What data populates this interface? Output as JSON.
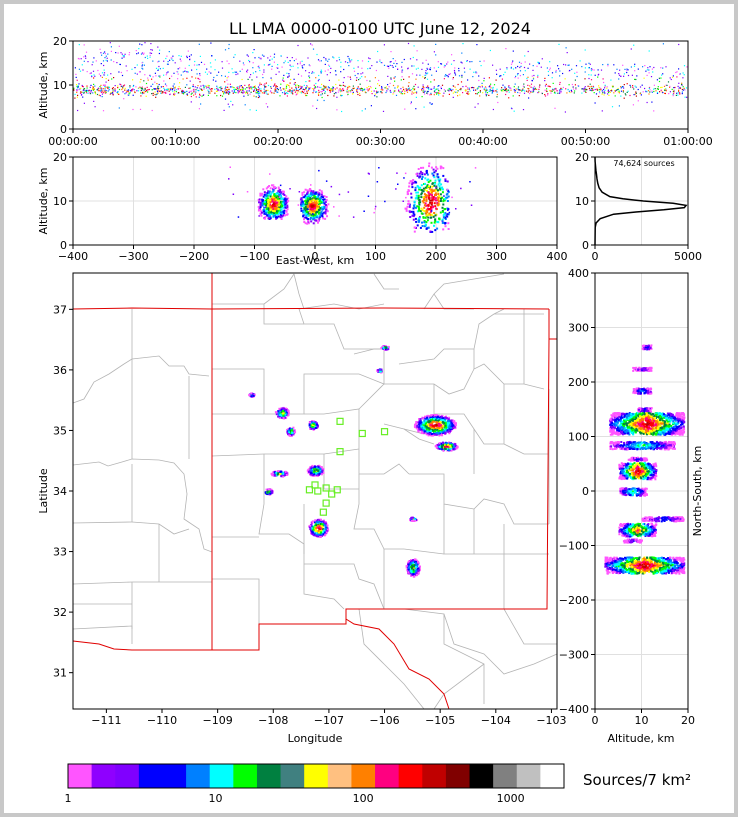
{
  "chart_data": [
    {
      "id": "time_height",
      "type": "scatter",
      "title": "LL LMA 0000-0100 UTC June 12, 2024",
      "ylabel": "Altitude, km",
      "ylim": [
        0,
        20
      ],
      "yticks": [
        0,
        10,
        20
      ],
      "xticks": [
        "00:00:00",
        "00:10:00",
        "00:20:00",
        "00:30:00",
        "00:40:00",
        "00:50:00",
        "01:00:00"
      ],
      "xlim_minutes": [
        0,
        60
      ],
      "dense_core_altitude_km": [
        7,
        12
      ],
      "source_altitude_extent_km": [
        2,
        20
      ]
    },
    {
      "id": "ew_altitude",
      "type": "heatmap",
      "xlabel": "East-West, km",
      "ylabel": "Altitude, km",
      "xlim": [
        -400,
        400
      ],
      "xticks": [
        -400,
        -300,
        -200,
        -100,
        0,
        100,
        200,
        300,
        400
      ],
      "ylim": [
        0,
        20
      ],
      "yticks": [
        0,
        10,
        20
      ],
      "clusters": [
        {
          "x": [
            -95,
            -45
          ],
          "alt": [
            6,
            14
          ],
          "peak_x": -70,
          "peak_alt": 9.5
        },
        {
          "x": [
            -25,
            25
          ],
          "alt": [
            5,
            13
          ],
          "peak_x": -5,
          "peak_alt": 9
        },
        {
          "x": [
            140,
            220
          ],
          "alt": [
            3,
            20
          ],
          "peak_x": 190,
          "peak_alt": 10
        }
      ]
    },
    {
      "id": "altitude_histogram",
      "type": "line",
      "annotation": "74,624 sources",
      "xlim": [
        0,
        5000
      ],
      "xticks": [
        0,
        5000
      ],
      "ylim": [
        0,
        20
      ],
      "yticks": [
        0,
        10,
        20
      ],
      "profile": [
        {
          "alt": 0,
          "count": 0
        },
        {
          "alt": 4,
          "count": 10
        },
        {
          "alt": 5,
          "count": 60
        },
        {
          "alt": 6,
          "count": 280
        },
        {
          "alt": 7,
          "count": 1000
        },
        {
          "alt": 7.5,
          "count": 2200
        },
        {
          "alt": 8,
          "count": 3700
        },
        {
          "alt": 8.5,
          "count": 4800
        },
        {
          "alt": 9,
          "count": 4900
        },
        {
          "alt": 9.5,
          "count": 4200
        },
        {
          "alt": 10,
          "count": 2600
        },
        {
          "alt": 10.5,
          "count": 1500
        },
        {
          "alt": 11,
          "count": 800
        },
        {
          "alt": 12,
          "count": 380
        },
        {
          "alt": 13,
          "count": 220
        },
        {
          "alt": 14,
          "count": 150
        },
        {
          "alt": 15,
          "count": 110
        },
        {
          "alt": 16,
          "count": 80
        },
        {
          "alt": 17,
          "count": 50
        },
        {
          "alt": 18,
          "count": 25
        },
        {
          "alt": 19,
          "count": 8
        },
        {
          "alt": 20,
          "count": 0
        }
      ]
    },
    {
      "id": "plan_view",
      "type": "heatmap",
      "xlabel": "Longitude",
      "ylabel": "Latitude",
      "xlim": [
        -111.6,
        -102.9
      ],
      "xticks": [
        -111,
        -110,
        -109,
        -108,
        -107,
        -106,
        -105,
        -104,
        -103
      ],
      "ylim": [
        30.4,
        37.6
      ],
      "yticks": [
        31,
        32,
        33,
        34,
        35,
        36,
        37
      ],
      "clusters": [
        {
          "lon": -105.1,
          "lat": 35.1,
          "w": 0.75,
          "h": 0.35
        },
        {
          "lon": -104.9,
          "lat": 34.75,
          "w": 0.4,
          "h": 0.15
        },
        {
          "lon": -107.25,
          "lat": 34.35,
          "w": 0.3,
          "h": 0.18
        },
        {
          "lon": -107.9,
          "lat": 34.3,
          "w": 0.3,
          "h": 0.1
        },
        {
          "lon": -107.85,
          "lat": 35.3,
          "w": 0.25,
          "h": 0.18
        },
        {
          "lon": -107.7,
          "lat": 35.0,
          "w": 0.15,
          "h": 0.15
        },
        {
          "lon": -107.2,
          "lat": 33.4,
          "w": 0.35,
          "h": 0.3
        },
        {
          "lon": -105.5,
          "lat": 32.75,
          "w": 0.25,
          "h": 0.3
        },
        {
          "lon": -106.0,
          "lat": 36.38,
          "w": 0.15,
          "h": 0.07
        },
        {
          "lon": -106.1,
          "lat": 36.0,
          "w": 0.1,
          "h": 0.06
        },
        {
          "lon": -108.1,
          "lat": 34.0,
          "w": 0.15,
          "h": 0.1
        },
        {
          "lon": -105.5,
          "lat": 33.55,
          "w": 0.15,
          "h": 0.06
        },
        {
          "lon": -108.4,
          "lat": 35.6,
          "w": 0.1,
          "h": 0.06
        },
        {
          "lon": -107.3,
          "lat": 35.1,
          "w": 0.2,
          "h": 0.15
        }
      ],
      "stations": [
        {
          "lon": -106.8,
          "lat": 35.15
        },
        {
          "lon": -106.4,
          "lat": 34.95
        },
        {
          "lon": -106.0,
          "lat": 34.98
        },
        {
          "lon": -106.8,
          "lat": 34.65
        },
        {
          "lon": -107.25,
          "lat": 34.1
        },
        {
          "lon": -107.05,
          "lat": 34.05
        },
        {
          "lon": -107.2,
          "lat": 34.0
        },
        {
          "lon": -107.35,
          "lat": 34.02
        },
        {
          "lon": -106.95,
          "lat": 33.95
        },
        {
          "lon": -106.85,
          "lat": 34.02
        },
        {
          "lon": -107.05,
          "lat": 33.8
        },
        {
          "lon": -107.1,
          "lat": 33.65
        }
      ]
    },
    {
      "id": "ns_altitude",
      "type": "heatmap",
      "xlabel": "Altitude, km",
      "ylabel": "North-South, km",
      "xlim": [
        0,
        20
      ],
      "xticks": [
        0,
        10,
        20
      ],
      "ylim": [
        -400,
        400
      ],
      "yticks": [
        -400,
        -300,
        -200,
        -100,
        0,
        100,
        200,
        300,
        400
      ],
      "bands": [
        {
          "ns": 265,
          "alt": [
            10,
            12
          ],
          "h": 8
        },
        {
          "ns": 225,
          "alt": [
            8,
            12
          ],
          "h": 6
        },
        {
          "ns": 185,
          "alt": [
            8,
            12
          ],
          "h": 10
        },
        {
          "ns": 150,
          "alt": [
            9,
            12
          ],
          "h": 8
        },
        {
          "ns": 125,
          "alt": [
            3,
            19
          ],
          "h": 40
        },
        {
          "ns": 85,
          "alt": [
            3,
            17
          ],
          "h": 14
        },
        {
          "ns": 60,
          "alt": [
            7,
            11
          ],
          "h": 6
        },
        {
          "ns": 38,
          "alt": [
            5,
            13
          ],
          "h": 30
        },
        {
          "ns": 0,
          "alt": [
            5,
            11
          ],
          "h": 14
        },
        {
          "ns": -50,
          "alt": [
            10,
            19
          ],
          "h": 8
        },
        {
          "ns": -70,
          "alt": [
            5,
            13
          ],
          "h": 24
        },
        {
          "ns": -90,
          "alt": [
            6,
            10
          ],
          "h": 6
        },
        {
          "ns": -135,
          "alt": [
            2,
            19
          ],
          "h": 30
        }
      ]
    },
    {
      "id": "colorbar",
      "type": "heatmap",
      "label": "Sources/7 km²",
      "ticks": [
        "1",
        "10",
        "100",
        "1000"
      ],
      "colors": [
        "#ff55ff",
        "#8f00ff",
        "#8000ff",
        "#0000ff",
        "#0000ff",
        "#0080ff",
        "#00ffff",
        "#00ff00",
        "#008040",
        "#408080",
        "#ffff00",
        "#ffc080",
        "#ff8000",
        "#ff0080",
        "#ff0000",
        "#c00000",
        "#800000",
        "#000000",
        "#808080",
        "#c0c0c0",
        "#ffffff"
      ]
    }
  ]
}
